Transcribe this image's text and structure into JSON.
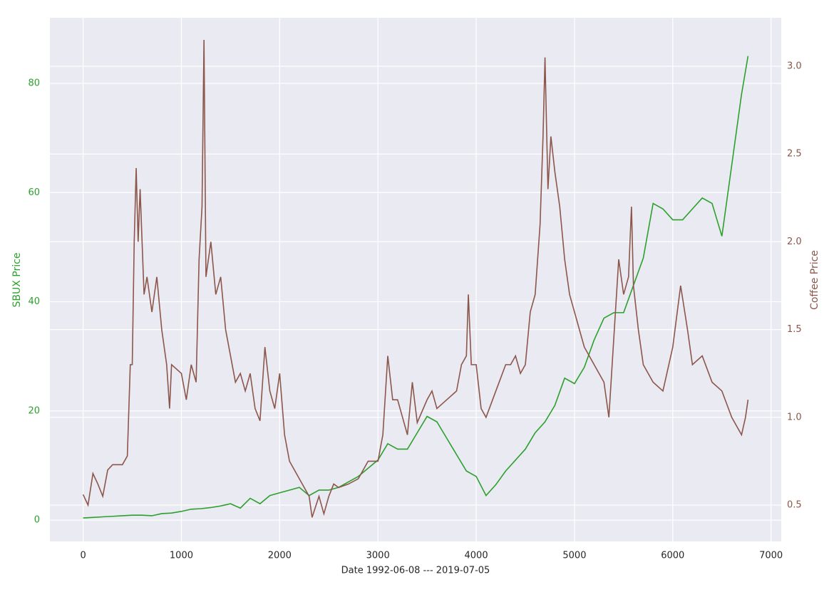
{
  "chart_data": {
    "type": "line",
    "xlabel": "Date 1992-06-08 --- 2019-07-05",
    "ylabel": "SBUX Price",
    "y2label": "Coffee Price",
    "xlim": [
      -338,
      7104
    ],
    "xticks": [
      0,
      1000,
      2000,
      3000,
      4000,
      5000,
      6000,
      7000
    ],
    "ylim": [
      -3.9,
      92
    ],
    "yticks": [
      0,
      20,
      40,
      60,
      80
    ],
    "y2lim": [
      0.293,
      3.276
    ],
    "y2ticks": [
      0.5,
      {
        "value": 1.0,
        "label": "1.0"
      },
      1.5,
      {
        "value": 2.0,
        "label": "2.0"
      },
      2.5,
      {
        "value": 3.0,
        "label": "3.0"
      }
    ],
    "grid": true,
    "series": [
      {
        "name": "SBUX Price",
        "color": "#2ca02c",
        "axis": "y",
        "x": [
          0,
          100,
          200,
          300,
          400,
          500,
          600,
          700,
          800,
          900,
          1000,
          1100,
          1200,
          1300,
          1400,
          1500,
          1600,
          1700,
          1800,
          1900,
          2000,
          2100,
          2200,
          2300,
          2400,
          2500,
          2600,
          2700,
          2800,
          2900,
          3000,
          3100,
          3200,
          3300,
          3400,
          3500,
          3600,
          3700,
          3800,
          3900,
          4000,
          4100,
          4200,
          4300,
          4400,
          4500,
          4600,
          4700,
          4800,
          4900,
          5000,
          5100,
          5200,
          5300,
          5400,
          5500,
          5600,
          5700,
          5800,
          5900,
          6000,
          6100,
          6200,
          6300,
          6400,
          6500,
          6600,
          6700,
          6766
        ],
        "values": [
          0.4,
          0.5,
          0.6,
          0.7,
          0.8,
          0.9,
          0.9,
          0.8,
          1.2,
          1.3,
          1.6,
          2.0,
          2.1,
          2.3,
          2.6,
          3.0,
          2.2,
          4.0,
          3.0,
          4.5,
          5.0,
          5.5,
          6.0,
          4.5,
          5.5,
          5.5,
          6.0,
          7.0,
          8.0,
          9.5,
          11,
          14,
          13,
          13,
          16,
          19,
          18,
          15,
          12,
          9,
          8,
          4.5,
          6.5,
          9,
          11,
          13,
          16,
          18,
          21,
          26,
          25,
          28,
          33,
          37,
          38,
          38,
          43,
          48,
          58,
          57,
          55,
          55,
          57,
          59,
          58,
          52,
          65,
          78,
          85
        ]
      },
      {
        "name": "Coffee Price",
        "color": "#8c564b",
        "axis": "y2",
        "x": [
          0,
          50,
          100,
          150,
          200,
          250,
          300,
          400,
          450,
          480,
          500,
          520,
          540,
          560,
          580,
          620,
          650,
          700,
          750,
          800,
          850,
          880,
          900,
          1000,
          1050,
          1100,
          1150,
          1180,
          1210,
          1230,
          1250,
          1300,
          1350,
          1400,
          1450,
          1500,
          1550,
          1600,
          1650,
          1700,
          1750,
          1800,
          1850,
          1900,
          1950,
          2000,
          2050,
          2100,
          2200,
          2300,
          2330,
          2400,
          2450,
          2500,
          2550,
          2600,
          2700,
          2800,
          2900,
          3000,
          3050,
          3100,
          3150,
          3200,
          3300,
          3350,
          3400,
          3500,
          3550,
          3600,
          3700,
          3800,
          3850,
          3900,
          3920,
          3950,
          4000,
          4050,
          4100,
          4200,
          4300,
          4350,
          4400,
          4450,
          4500,
          4550,
          4600,
          4650,
          4680,
          4700,
          4730,
          4760,
          4800,
          4850,
          4900,
          4950,
          5000,
          5050,
          5100,
          5200,
          5300,
          5350,
          5400,
          5450,
          5500,
          5550,
          5580,
          5600,
          5650,
          5700,
          5800,
          5900,
          6000,
          6080,
          6150,
          6200,
          6300,
          6400,
          6500,
          6600,
          6700,
          6740,
          6766
        ],
        "values": [
          0.56,
          0.5,
          0.68,
          0.62,
          0.55,
          0.7,
          0.73,
          0.73,
          0.78,
          1.3,
          1.3,
          2.0,
          2.42,
          2.0,
          2.3,
          1.7,
          1.8,
          1.6,
          1.8,
          1.5,
          1.3,
          1.05,
          1.3,
          1.25,
          1.1,
          1.3,
          1.2,
          1.9,
          2.2,
          3.15,
          1.8,
          2.0,
          1.7,
          1.8,
          1.5,
          1.35,
          1.2,
          1.25,
          1.15,
          1.25,
          1.05,
          0.98,
          1.4,
          1.15,
          1.05,
          1.25,
          0.9,
          0.75,
          0.65,
          0.55,
          0.43,
          0.55,
          0.45,
          0.55,
          0.62,
          0.6,
          0.62,
          0.65,
          0.75,
          0.75,
          0.9,
          1.35,
          1.1,
          1.1,
          0.9,
          1.2,
          0.97,
          1.1,
          1.15,
          1.05,
          1.1,
          1.15,
          1.3,
          1.35,
          1.7,
          1.3,
          1.3,
          1.05,
          1.0,
          1.15,
          1.3,
          1.3,
          1.35,
          1.25,
          1.3,
          1.6,
          1.7,
          2.1,
          2.6,
          3.05,
          2.3,
          2.6,
          2.4,
          2.2,
          1.9,
          1.7,
          1.6,
          1.5,
          1.4,
          1.3,
          1.2,
          1.0,
          1.45,
          1.9,
          1.7,
          1.8,
          2.2,
          1.75,
          1.5,
          1.3,
          1.2,
          1.15,
          1.4,
          1.75,
          1.5,
          1.3,
          1.35,
          1.2,
          1.15,
          1.0,
          0.9,
          1.0,
          1.1
        ]
      }
    ]
  }
}
